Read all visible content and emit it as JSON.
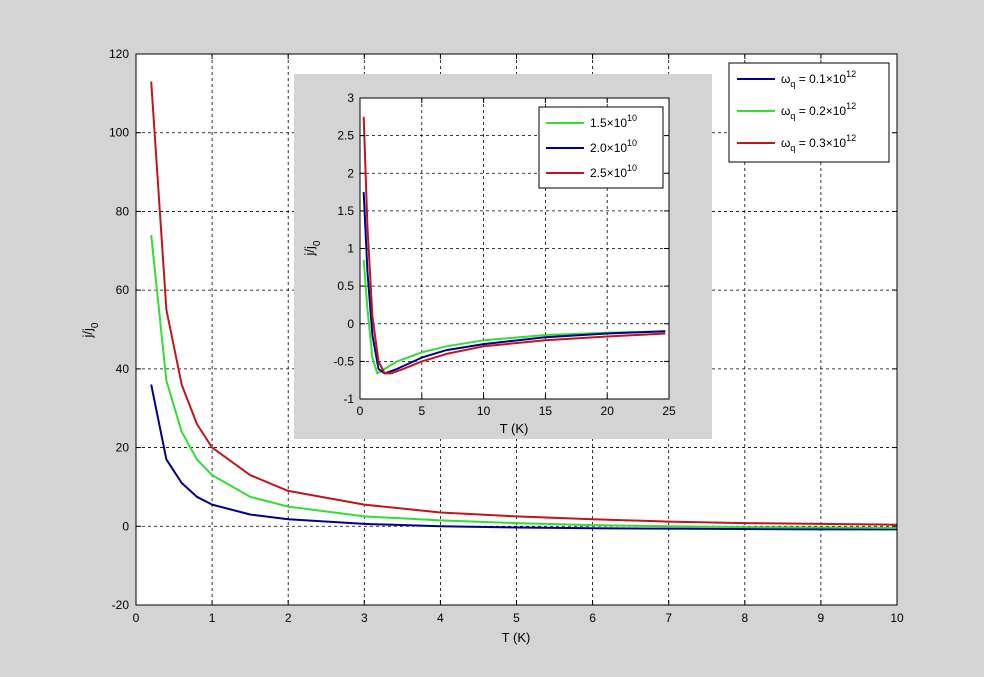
{
  "chart_data": [
    {
      "type": "line",
      "xlabel": "T (K)",
      "ylabel_main": "j/j",
      "ylabel_sub": "0",
      "xlim": [
        0,
        10
      ],
      "ylim": [
        -20,
        120
      ],
      "xticks": [
        0,
        1,
        2,
        3,
        4,
        5,
        6,
        7,
        8,
        9,
        10
      ],
      "yticks": [
        -20,
        0,
        20,
        40,
        60,
        80,
        100,
        120
      ],
      "grid": true,
      "legend_position": "top-right",
      "series": [
        {
          "name": "ω_q = 0.1×10^12",
          "legend": {
            "pre": "ω",
            "sub": "q",
            "mid": " = 0.1×10",
            "sup": "12"
          },
          "color": "#00008b",
          "x": [
            0.2,
            0.4,
            0.6,
            0.8,
            1.0,
            1.5,
            2.0,
            3.0,
            4.0,
            5.0,
            6.0,
            7.0,
            8.0,
            9.0,
            10.0
          ],
          "y": [
            36,
            17,
            11,
            7.5,
            5.5,
            3.0,
            1.8,
            0.6,
            0.0,
            -0.3,
            -0.5,
            -0.6,
            -0.7,
            -0.8,
            -0.8
          ]
        },
        {
          "name": "ω_q = 0.2×10^12",
          "legend": {
            "pre": "ω",
            "sub": "q",
            "mid": " = 0.2×10",
            "sup": "12"
          },
          "color": "#33dd33",
          "x": [
            0.2,
            0.4,
            0.6,
            0.8,
            1.0,
            1.5,
            2.0,
            3.0,
            4.0,
            5.0,
            6.0,
            7.0,
            8.0,
            9.0,
            10.0
          ],
          "y": [
            74,
            37,
            24,
            17,
            13,
            7.5,
            5.0,
            2.5,
            1.5,
            0.8,
            0.3,
            0.0,
            -0.2,
            -0.3,
            -0.4
          ]
        },
        {
          "name": "ω_q = 0.3×10^12",
          "legend": {
            "pre": "ω",
            "sub": "q",
            "mid": " = 0.3×10",
            "sup": "12"
          },
          "color": "#c0161b",
          "x": [
            0.2,
            0.4,
            0.6,
            0.8,
            1.0,
            1.5,
            2.0,
            3.0,
            4.0,
            5.0,
            6.0,
            7.0,
            8.0,
            9.0,
            10.0
          ],
          "y": [
            113,
            55,
            36,
            26,
            20,
            13,
            9.0,
            5.5,
            3.5,
            2.5,
            1.8,
            1.2,
            0.8,
            0.6,
            0.4
          ]
        }
      ]
    },
    {
      "type": "line",
      "xlabel": "T (K)",
      "ylabel_main": "j/j",
      "ylabel_sub": "0",
      "xlim": [
        0,
        25
      ],
      "ylim": [
        -1,
        3
      ],
      "xticks": [
        0,
        5,
        10,
        15,
        20,
        25
      ],
      "yticks": [
        -1,
        -0.5,
        0,
        0.5,
        1,
        1.5,
        2,
        2.5,
        3
      ],
      "grid": true,
      "legend_position": "top-right",
      "series": [
        {
          "name": "1.5×10^10",
          "legend": {
            "pre": "",
            "sub": "",
            "mid": "1.5×10",
            "sup": "10"
          },
          "color": "#33dd33",
          "x": [
            0.3,
            0.6,
            1.0,
            1.4,
            2.0,
            3.0,
            5.0,
            7.0,
            10.0,
            15.0,
            20.0,
            24.7
          ],
          "y": [
            0.85,
            0.2,
            -0.45,
            -0.66,
            -0.6,
            -0.5,
            -0.38,
            -0.3,
            -0.22,
            -0.15,
            -0.12,
            -0.1
          ]
        },
        {
          "name": "2.0×10^10",
          "legend": {
            "pre": "",
            "sub": "",
            "mid": "2.0×10",
            "sup": "10"
          },
          "color": "#00008b",
          "x": [
            0.3,
            0.6,
            1.0,
            1.5,
            2.0,
            3.0,
            5.0,
            7.0,
            10.0,
            15.0,
            20.0,
            24.7
          ],
          "y": [
            1.75,
            0.7,
            -0.15,
            -0.6,
            -0.66,
            -0.6,
            -0.45,
            -0.35,
            -0.27,
            -0.18,
            -0.13,
            -0.1
          ]
        },
        {
          "name": "2.5×10^10",
          "legend": {
            "pre": "",
            "sub": "",
            "mid": "2.5×10",
            "sup": "10"
          },
          "color": "#c0161b",
          "x": [
            0.3,
            0.6,
            1.0,
            1.5,
            2.0,
            2.5,
            3.5,
            5.0,
            7.0,
            10.0,
            15.0,
            20.0,
            24.7
          ],
          "y": [
            2.75,
            1.3,
            0.1,
            -0.5,
            -0.66,
            -0.66,
            -0.6,
            -0.5,
            -0.4,
            -0.3,
            -0.22,
            -0.17,
            -0.13
          ]
        }
      ]
    }
  ]
}
